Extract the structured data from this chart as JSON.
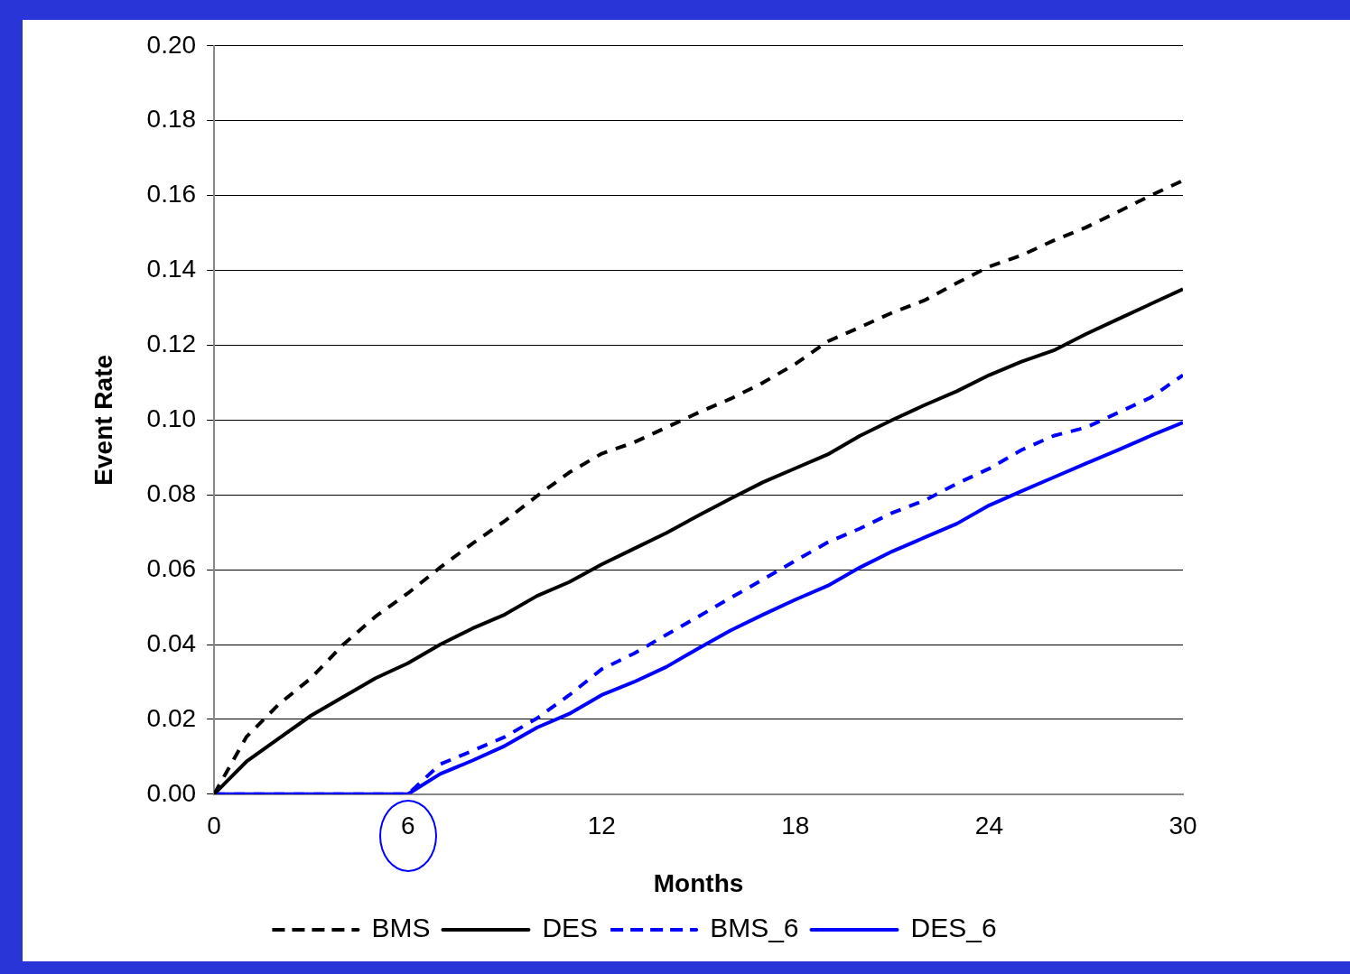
{
  "chart_data": {
    "type": "line",
    "xlabel": "Months",
    "ylabel": "Event Rate",
    "x": [
      0,
      1,
      2,
      3,
      4,
      5,
      6,
      7,
      8,
      9,
      10,
      11,
      12,
      13,
      14,
      15,
      16,
      17,
      18,
      19,
      20,
      21,
      22,
      23,
      24,
      25,
      26,
      27,
      28,
      29,
      30
    ],
    "series": [
      {
        "name": "BMS",
        "color": "#000000",
        "line_style": "dashed",
        "values": [
          0,
          0.0153,
          0.024,
          0.031,
          0.04,
          0.0475,
          0.0537,
          0.0606,
          0.067,
          0.073,
          0.0797,
          0.086,
          0.091,
          0.094,
          0.098,
          0.102,
          0.1057,
          0.11,
          0.115,
          0.121,
          0.1248,
          0.1287,
          0.132,
          0.1366,
          0.141,
          0.144,
          0.148,
          0.1515,
          0.1557,
          0.16,
          0.164
        ]
      },
      {
        "name": "DES",
        "color": "#000000",
        "line_style": "solid",
        "values": [
          0,
          0.0087,
          0.0149,
          0.021,
          0.026,
          0.031,
          0.035,
          0.04,
          0.0443,
          0.048,
          0.053,
          0.0567,
          0.0614,
          0.0656,
          0.0698,
          0.0745,
          0.079,
          0.0834,
          0.0871,
          0.0908,
          0.0958,
          0.1,
          0.104,
          0.1077,
          0.112,
          0.1156,
          0.1186,
          0.123,
          0.127,
          0.131,
          0.135
        ]
      },
      {
        "name": "BMS_6",
        "color": "#0000ff",
        "line_style": "dashed",
        "values": [
          0,
          0,
          0,
          0,
          0,
          0,
          0,
          0.008,
          0.0116,
          0.0153,
          0.0203,
          0.0265,
          0.0334,
          0.0376,
          0.0426,
          0.0475,
          0.0525,
          0.0574,
          0.0624,
          0.0673,
          0.071,
          0.0752,
          0.0785,
          0.083,
          0.087,
          0.092,
          0.0958,
          0.098,
          0.102,
          0.106,
          0.112
        ]
      },
      {
        "name": "DES_6",
        "color": "#0000ff",
        "line_style": "solid",
        "values": [
          0,
          0,
          0,
          0,
          0,
          0,
          0,
          0.0054,
          0.009,
          0.0129,
          0.0178,
          0.0215,
          0.0265,
          0.03,
          0.034,
          0.039,
          0.0438,
          0.048,
          0.052,
          0.0557,
          0.0606,
          0.0649,
          0.0686,
          0.0723,
          0.0772,
          0.081,
          0.0847,
          0.0884,
          0.092,
          0.0958,
          0.0993
        ]
      }
    ],
    "xlim": [
      0,
      30
    ],
    "xticks": [
      0,
      6,
      12,
      18,
      24,
      30
    ],
    "ylim": [
      0,
      0.2
    ],
    "yticks": [
      {
        "value": 0,
        "label": "0.00"
      },
      {
        "value": 0.02,
        "label": "0.02"
      },
      {
        "value": 0.04,
        "label": "0.04"
      },
      {
        "value": 0.06,
        "label": "0.06"
      },
      {
        "value": 0.08,
        "label": "0.08"
      },
      {
        "value": 0.1,
        "label": "0.10"
      },
      {
        "value": 0.12,
        "label": "0.12"
      },
      {
        "value": 0.14,
        "label": "0.14"
      },
      {
        "value": 0.16,
        "label": "0.16"
      },
      {
        "value": 0.18,
        "label": "0.18"
      },
      {
        "value": 0.2,
        "label": "0.20"
      }
    ],
    "grid": "y",
    "legend": "bottom",
    "marker": "none"
  }
}
